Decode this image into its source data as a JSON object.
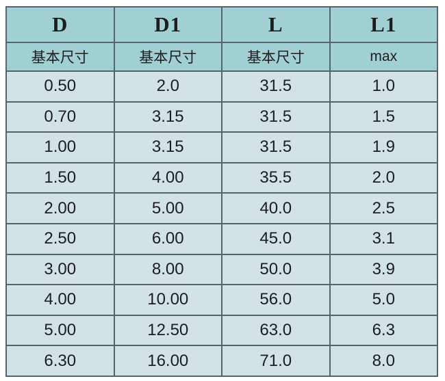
{
  "colors": {
    "page_bg": "#ffffff",
    "header_bg": "#a0d0d4",
    "row_bg": "#d2e2e7",
    "border": "#55646c",
    "text": "#1d1d1d"
  },
  "table": {
    "columns": [
      {
        "label": "D",
        "sub": "基本尺寸"
      },
      {
        "label": "D1",
        "sub": "基本尺寸"
      },
      {
        "label": "L",
        "sub": "基本尺寸"
      },
      {
        "label": "L1",
        "sub": "max"
      }
    ],
    "rows": [
      [
        "0.50",
        "2.0",
        "31.5",
        "1.0"
      ],
      [
        "0.70",
        "3.15",
        "31.5",
        "1.5"
      ],
      [
        "1.00",
        "3.15",
        "31.5",
        "1.9"
      ],
      [
        "1.50",
        "4.00",
        "35.5",
        "2.0"
      ],
      [
        "2.00",
        "5.00",
        "40.0",
        "2.5"
      ],
      [
        "2.50",
        "6.00",
        "45.0",
        "3.1"
      ],
      [
        "3.00",
        "8.00",
        "50.0",
        "3.9"
      ],
      [
        "4.00",
        "10.00",
        "56.0",
        "5.0"
      ],
      [
        "5.00",
        "12.50",
        "63.0",
        "6.3"
      ],
      [
        "6.30",
        "16.00",
        "71.0",
        "8.0"
      ]
    ]
  },
  "chart_data": {
    "type": "table",
    "title": "",
    "columns": [
      "D (基本尺寸)",
      "D1 (基本尺寸)",
      "L (基本尺寸)",
      "L1 (max)"
    ],
    "rows": [
      [
        0.5,
        2.0,
        31.5,
        1.0
      ],
      [
        0.7,
        3.15,
        31.5,
        1.5
      ],
      [
        1.0,
        3.15,
        31.5,
        1.9
      ],
      [
        1.5,
        4.0,
        35.5,
        2.0
      ],
      [
        2.0,
        5.0,
        40.0,
        2.5
      ],
      [
        2.5,
        6.0,
        45.0,
        3.1
      ],
      [
        3.0,
        8.0,
        50.0,
        3.9
      ],
      [
        4.0,
        10.0,
        56.0,
        5.0
      ],
      [
        5.0,
        12.5,
        63.0,
        6.3
      ],
      [
        6.3,
        16.0,
        71.0,
        8.0
      ]
    ]
  }
}
